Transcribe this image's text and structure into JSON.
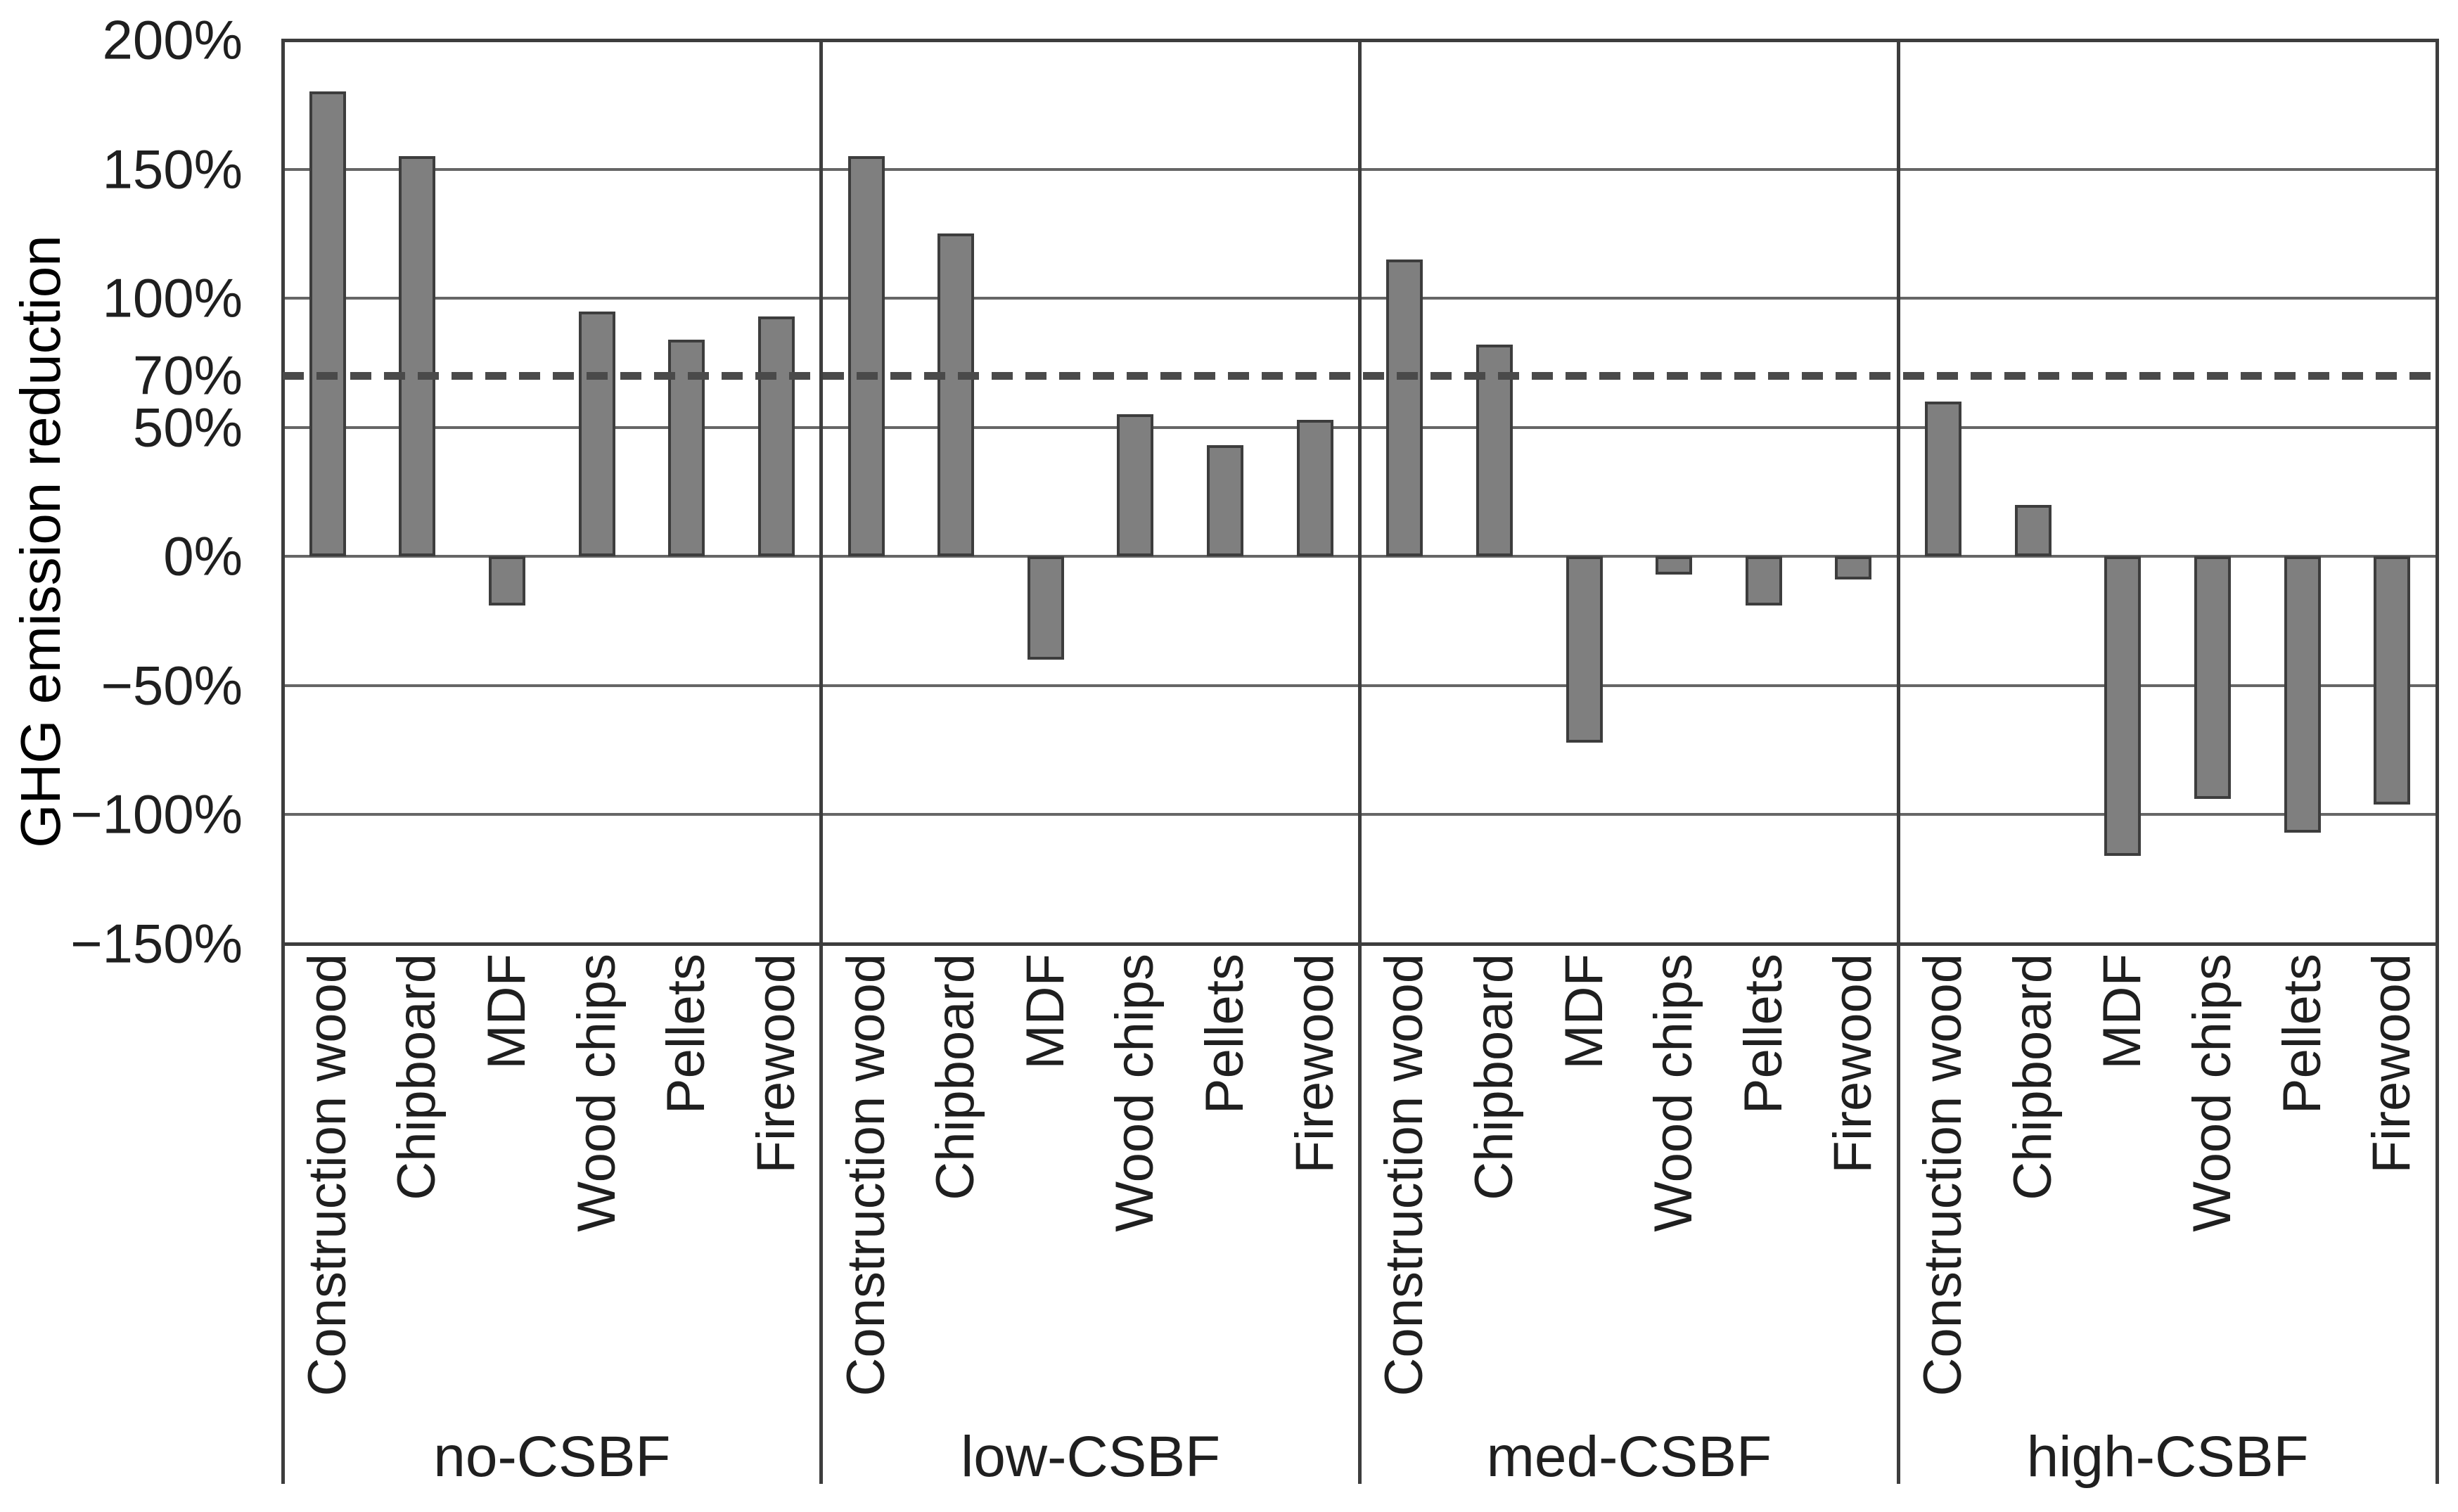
{
  "chart_data": {
    "type": "bar",
    "title": "",
    "ylabel": "GHG emission reduction",
    "xlabel": "",
    "ylim": [
      -150,
      200
    ],
    "grid": "on",
    "legend": "none",
    "ytick_values": [
      200,
      150,
      100,
      70,
      50,
      0,
      -50,
      -100,
      -150
    ],
    "ytick_labels": [
      "200%",
      "150%",
      "100%",
      "70%",
      "50%",
      "0%",
      "−50%",
      "−100%",
      "−150%"
    ],
    "gridline_values": [
      150,
      100,
      50,
      0,
      -50,
      -100
    ],
    "reference_line": {
      "value": 70,
      "style": "dashed",
      "tick_label": "70%"
    },
    "categories": [
      "Construction wood",
      "Chipboard",
      "MDF",
      "Wood chips",
      "Pellets",
      "Firewood"
    ],
    "groups": [
      {
        "label": "no-CSBF",
        "values": [
          180,
          155,
          -19,
          95,
          84,
          93
        ]
      },
      {
        "label": "low-CSBF",
        "values": [
          155,
          125,
          -40,
          55,
          43,
          53
        ]
      },
      {
        "label": "med-CSBF",
        "values": [
          115,
          82,
          -72,
          -7,
          -19,
          -9
        ]
      },
      {
        "label": "high-CSBF",
        "values": [
          60,
          20,
          -116,
          -94,
          -107,
          -96
        ]
      }
    ],
    "colors": {
      "bar_fill": "#7f7f7f",
      "bar_border": "#3d3d3d",
      "gridline": "#666666",
      "frame": "#3d3d3d",
      "dashed_line": "#4a4a4a",
      "text": "#1f1f1f",
      "background": "#ffffff"
    }
  }
}
